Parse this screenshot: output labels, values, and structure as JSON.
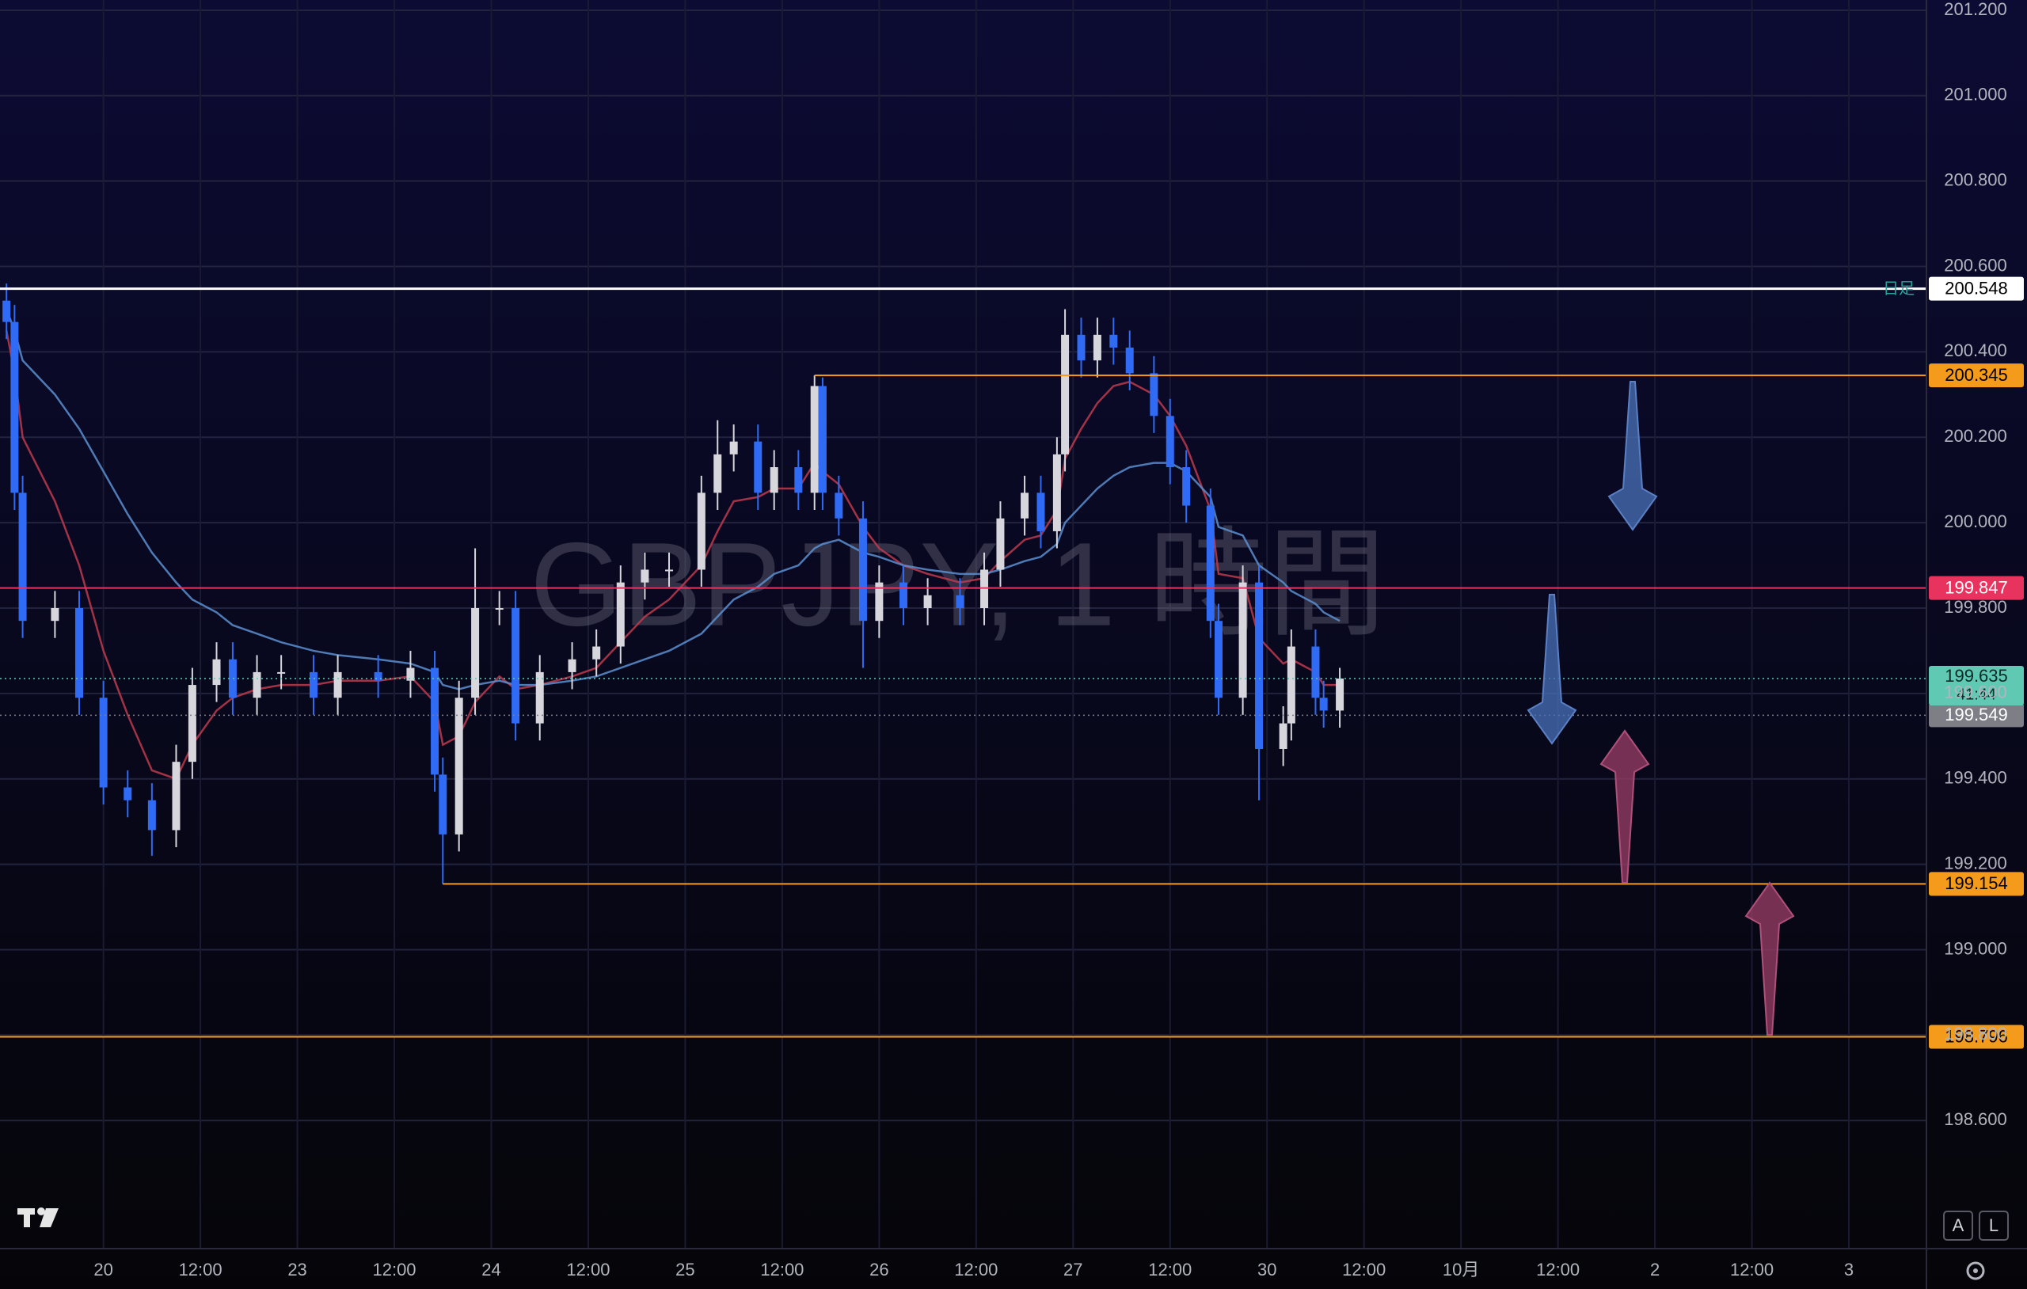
{
  "chart_data": {
    "type": "candlestick",
    "watermark": "GBPJPY, 1 時間",
    "x": [
      -12,
      -11,
      -10,
      -6,
      -3,
      0,
      3,
      6,
      9,
      11,
      14,
      16,
      19,
      22,
      26,
      29,
      34,
      38,
      41,
      42,
      44,
      46,
      49,
      51,
      54,
      58,
      61,
      64,
      67,
      70,
      74,
      76,
      78,
      81,
      83,
      86,
      88,
      89,
      91,
      94,
      96,
      99,
      102,
      106,
      109,
      111,
      114,
      116,
      118,
      119,
      121,
      123,
      125,
      127,
      130,
      132,
      134,
      137,
      138,
      141,
      143,
      146,
      147,
      150,
      151,
      153
    ],
    "open": [
      200.52,
      200.47,
      200.07,
      199.77,
      199.8,
      199.59,
      199.38,
      199.35,
      199.28,
      199.44,
      199.62,
      199.68,
      199.59,
      199.65,
      199.65,
      199.59,
      199.65,
      199.63,
      199.66,
      199.41,
      199.27,
      199.59,
      199.8,
      199.8,
      199.53,
      199.65,
      199.68,
      199.71,
      199.86,
      199.89,
      199.89,
      200.07,
      200.16,
      200.19,
      200.07,
      200.13,
      200.07,
      200.32,
      200.07,
      200.01,
      199.77,
      199.86,
      199.8,
      199.83,
      199.8,
      199.89,
      200.01,
      200.07,
      199.98,
      200.16,
      200.44,
      200.38,
      200.44,
      200.41,
      200.35,
      200.25,
      200.13,
      200.04,
      199.77,
      199.59,
      199.86,
      199.47,
      199.53,
      199.71,
      199.59,
      199.56
    ],
    "high": [
      200.56,
      200.51,
      200.11,
      199.84,
      199.84,
      199.63,
      199.42,
      199.39,
      199.48,
      199.66,
      199.72,
      199.72,
      199.69,
      199.69,
      199.69,
      199.69,
      199.69,
      199.7,
      199.7,
      199.45,
      199.63,
      199.94,
      199.84,
      199.84,
      199.69,
      199.72,
      199.75,
      199.9,
      199.93,
      199.93,
      200.11,
      200.24,
      200.23,
      200.23,
      200.17,
      200.17,
      200.345,
      200.34,
      200.11,
      200.05,
      199.9,
      199.9,
      199.87,
      199.87,
      199.93,
      200.05,
      200.11,
      200.11,
      200.2,
      200.5,
      200.48,
      200.48,
      200.48,
      200.45,
      200.39,
      200.29,
      200.17,
      200.08,
      199.81,
      199.9,
      199.9,
      199.57,
      199.75,
      199.75,
      199.63,
      199.66
    ],
    "low": [
      200.43,
      200.03,
      199.73,
      199.73,
      199.55,
      199.34,
      199.31,
      199.22,
      199.24,
      199.4,
      199.58,
      199.55,
      199.55,
      199.61,
      199.55,
      199.55,
      199.59,
      199.59,
      199.37,
      199.154,
      199.23,
      199.55,
      199.76,
      199.49,
      199.49,
      199.61,
      199.64,
      199.67,
      199.82,
      199.85,
      199.85,
      200.03,
      200.12,
      200.03,
      200.03,
      200.03,
      200.03,
      200.03,
      199.97,
      199.66,
      199.73,
      199.76,
      199.76,
      199.76,
      199.76,
      199.85,
      199.97,
      199.94,
      199.94,
      200.12,
      200.34,
      200.34,
      200.37,
      200.31,
      200.21,
      200.09,
      200.0,
      199.73,
      199.55,
      199.55,
      199.35,
      199.43,
      199.49,
      199.55,
      199.52,
      199.52
    ],
    "close": [
      200.47,
      200.07,
      199.77,
      199.8,
      199.59,
      199.38,
      199.35,
      199.28,
      199.44,
      199.62,
      199.68,
      199.59,
      199.65,
      199.65,
      199.59,
      199.65,
      199.63,
      199.66,
      199.41,
      199.27,
      199.59,
      199.8,
      199.8,
      199.53,
      199.65,
      199.68,
      199.71,
      199.86,
      199.89,
      199.89,
      200.07,
      200.16,
      200.19,
      200.07,
      200.13,
      200.07,
      200.32,
      200.07,
      200.01,
      199.77,
      199.86,
      199.8,
      199.83,
      199.8,
      199.89,
      200.01,
      200.07,
      199.98,
      200.16,
      200.44,
      200.38,
      200.44,
      200.41,
      200.35,
      200.25,
      200.13,
      200.04,
      199.77,
      199.59,
      199.86,
      199.47,
      199.53,
      199.71,
      199.59,
      199.56,
      199.635
    ],
    "up_color": "#d6d6dc",
    "down_color": "#2f6bf5",
    "moving_averages": [
      {
        "color": "#c0394e",
        "values": [
          200.45,
          200.35,
          200.2,
          200.05,
          199.9,
          199.7,
          199.55,
          199.42,
          199.4,
          199.48,
          199.56,
          199.59,
          199.61,
          199.62,
          199.62,
          199.63,
          199.63,
          199.64,
          199.58,
          199.48,
          199.5,
          199.58,
          199.64,
          199.61,
          199.62,
          199.64,
          199.66,
          199.72,
          199.78,
          199.82,
          199.9,
          199.98,
          200.05,
          200.06,
          200.08,
          200.08,
          200.14,
          200.12,
          200.09,
          199.99,
          199.94,
          199.9,
          199.88,
          199.86,
          199.87,
          199.91,
          199.96,
          199.97,
          200.03,
          200.15,
          200.22,
          200.28,
          200.32,
          200.33,
          200.3,
          200.25,
          200.18,
          200.03,
          199.88,
          199.87,
          199.73,
          199.67,
          199.68,
          199.65,
          199.62,
          199.62
        ]
      },
      {
        "color": "#5b8fd0",
        "values": [
          200.5,
          200.45,
          200.38,
          200.3,
          200.22,
          200.12,
          200.02,
          199.93,
          199.86,
          199.82,
          199.79,
          199.76,
          199.74,
          199.72,
          199.7,
          199.69,
          199.68,
          199.67,
          199.65,
          199.62,
          199.61,
          199.62,
          199.63,
          199.62,
          199.62,
          199.63,
          199.64,
          199.66,
          199.68,
          199.7,
          199.74,
          199.78,
          199.82,
          199.85,
          199.88,
          199.9,
          199.94,
          199.95,
          199.96,
          199.93,
          199.92,
          199.9,
          199.89,
          199.88,
          199.88,
          199.89,
          199.91,
          199.92,
          199.95,
          200.0,
          200.04,
          200.08,
          200.11,
          200.13,
          200.14,
          200.14,
          200.12,
          200.06,
          199.99,
          199.97,
          199.9,
          199.86,
          199.84,
          199.81,
          199.79,
          199.77
        ]
      }
    ],
    "xlim": [
      -12.8,
      225.6
    ],
    "xticks": [
      {
        "value": 0,
        "label": "20"
      },
      {
        "value": 12,
        "label": "12:00"
      },
      {
        "value": 24,
        "label": "23"
      },
      {
        "value": 36,
        "label": "12:00"
      },
      {
        "value": 48,
        "label": "24"
      },
      {
        "value": 60,
        "label": "12:00"
      },
      {
        "value": 72,
        "label": "25"
      },
      {
        "value": 84,
        "label": "12:00"
      },
      {
        "value": 96,
        "label": "26"
      },
      {
        "value": 108,
        "label": "12:00"
      },
      {
        "value": 120,
        "label": "27"
      },
      {
        "value": 132,
        "label": "12:00"
      },
      {
        "value": 144,
        "label": "30"
      },
      {
        "value": 156,
        "label": "12:00"
      },
      {
        "value": 168,
        "label": "10月"
      },
      {
        "value": 180,
        "label": "12:00"
      },
      {
        "value": 192,
        "label": "2"
      },
      {
        "value": 204,
        "label": "12:00"
      },
      {
        "value": 216,
        "label": "3"
      }
    ],
    "ylim": [
      198.3,
      201.224
    ],
    "yticks": [
      {
        "value": 198.6,
        "label": "198.600"
      },
      {
        "value": 198.8,
        "label": "198.800"
      },
      {
        "value": 199,
        "label": "199.000"
      },
      {
        "value": 199.2,
        "label": "199.200"
      },
      {
        "value": 199.4,
        "label": "199.400"
      },
      {
        "value": 199.6,
        "label": "199.600"
      },
      {
        "value": 199.8,
        "label": "199.800"
      },
      {
        "value": 200,
        "label": "200.000"
      },
      {
        "value": 200.2,
        "label": "200.200"
      },
      {
        "value": 200.4,
        "label": "200.400"
      },
      {
        "value": 200.6,
        "label": "200.600"
      },
      {
        "value": 200.8,
        "label": "200.800"
      },
      {
        "value": 201,
        "label": "201.000"
      },
      {
        "value": 201.2,
        "label": "201.200"
      }
    ],
    "grid": true,
    "levels": [
      {
        "value": 200.548,
        "color": "#ffffff",
        "label": "日足"
      },
      {
        "value": 200.345,
        "color": "#f59b1c",
        "from": 88
      },
      {
        "value": 199.847,
        "color": "#e8335f"
      },
      {
        "value": 199.154,
        "color": "#f59b1c",
        "from": 42
      },
      {
        "value": 198.796,
        "color": "#f59b1c"
      }
    ],
    "last_price": {
      "value": 199.635,
      "countdown": "41:44",
      "color": "#5fc9b4"
    },
    "prev_close": {
      "value": 199.549,
      "color": "#7e7e86"
    }
  },
  "controls": {
    "auto": "A",
    "log": "L"
  }
}
